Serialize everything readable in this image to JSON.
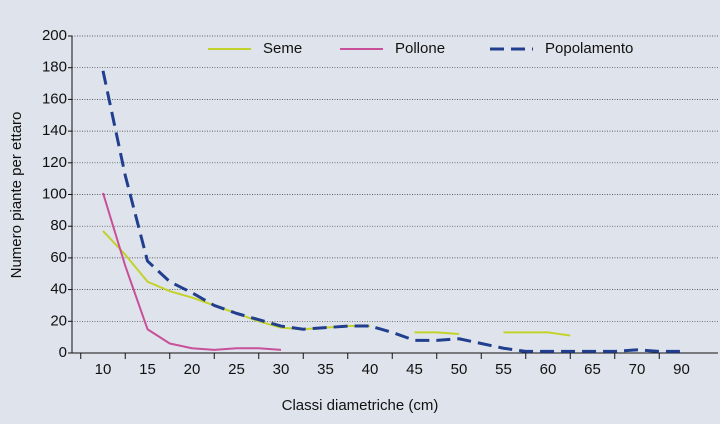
{
  "chart_data": {
    "type": "line",
    "xlabel": "Classi diametriche (cm)",
    "ylabel": "Numero piante per ettaro",
    "categories": [
      "10",
      null,
      "15",
      null,
      "20",
      null,
      "25",
      null,
      "30",
      null,
      "35",
      null,
      "40",
      null,
      "45",
      null,
      "50",
      null,
      "55",
      null,
      "60",
      null,
      "65",
      null,
      "70",
      null,
      "90"
    ],
    "series": [
      {
        "name": "Seme",
        "color": "#c3d22a",
        "dash": false,
        "values": [
          77,
          62,
          45,
          39,
          35,
          30,
          25,
          20,
          16,
          15,
          16,
          17,
          17,
          null,
          13,
          13,
          12,
          null,
          13,
          13,
          13,
          11,
          null,
          null,
          null,
          null,
          null
        ]
      },
      {
        "name": "Pollone",
        "color": "#c8509a",
        "dash": false,
        "values": [
          101,
          55,
          15,
          6,
          3,
          2,
          3,
          3,
          2,
          null,
          null,
          null,
          null,
          null,
          null,
          null,
          null,
          null,
          null,
          null,
          null,
          null,
          null,
          null,
          null,
          null,
          null
        ]
      },
      {
        "name": "Popolamento",
        "color": "#213f8e",
        "dash": true,
        "values": [
          178,
          112,
          58,
          45,
          38,
          30,
          25,
          21,
          17,
          15,
          16,
          17,
          17,
          13,
          8,
          8,
          9,
          6,
          3,
          1,
          1,
          1,
          1,
          1,
          2,
          1,
          1
        ]
      }
    ],
    "ylim": [
      0,
      200
    ],
    "yticks": [
      0,
      20,
      40,
      60,
      80,
      100,
      120,
      140,
      160,
      180,
      200
    ],
    "grid": true,
    "legend": "top"
  }
}
